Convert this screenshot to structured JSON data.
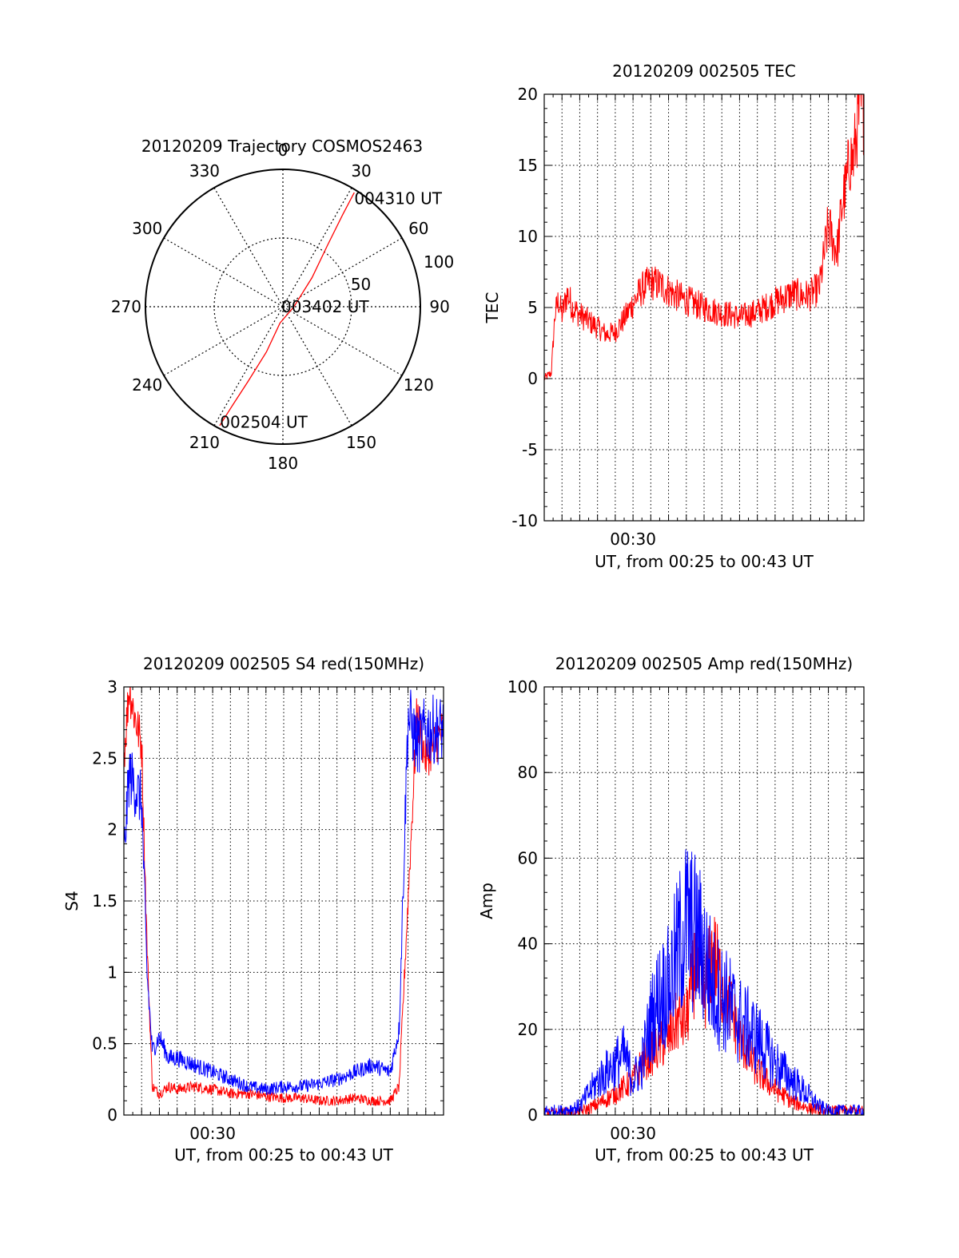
{
  "chart_data": [
    {
      "type": "polar",
      "title": "20120209 Trajectory COSMOS2463",
      "azimuth_labels": [
        "0",
        "30",
        "60",
        "90",
        "120",
        "150",
        "180",
        "210",
        "240",
        "270",
        "300",
        "330"
      ],
      "azimuth_values": [
        0,
        30,
        60,
        90,
        120,
        150,
        180,
        210,
        240,
        270,
        300,
        330
      ],
      "ring_labels": [
        "50",
        "100"
      ],
      "ring_values": [
        50,
        100
      ],
      "r_max": 100,
      "annotations": [
        {
          "text": "004310 UT",
          "az": 34,
          "r": 95
        },
        {
          "text": "003402 UT",
          "az": 0,
          "r": 0
        },
        {
          "text": "002504 UT",
          "az": 208,
          "r": 95
        }
      ],
      "series": [
        {
          "color": "#ff0000",
          "points": [
            [
              32,
              98
            ],
            [
              33,
              80
            ],
            [
              36,
              55
            ],
            [
              45,
              30
            ],
            [
              90,
              8
            ],
            [
              190,
              12
            ],
            [
              200,
              35
            ],
            [
              205,
              60
            ],
            [
              207,
              80
            ],
            [
              208,
              98
            ]
          ]
        }
      ]
    },
    {
      "type": "line",
      "title": "20120209 002505 TEC",
      "ylabel": "TEC",
      "xlabel": "UT, from 00:25 to 00:43 UT",
      "xticklabels": [
        {
          "value": 30,
          "label": "00:30"
        }
      ],
      "yticks": [
        "-10",
        "-5",
        "0",
        "5",
        "10",
        "15",
        "20"
      ],
      "ytick_values": [
        -10,
        -5,
        0,
        5,
        10,
        15,
        20
      ],
      "xlim": [
        25,
        43
      ],
      "ylim": [
        -10,
        20
      ],
      "series": [
        {
          "color": "#ff0000",
          "noise": 0.15,
          "x": [
            25.0,
            25.4,
            25.6,
            25.8,
            26.0,
            26.3,
            26.6,
            27.0,
            28.0,
            28.5,
            29.0,
            29.5,
            30.0,
            30.5,
            31.0,
            31.5,
            32.0,
            32.5,
            33.0,
            34.0,
            35.0,
            35.5,
            36.0,
            37.0,
            38.0,
            39.0,
            39.5,
            40.0,
            40.5,
            41.0,
            41.3,
            41.5,
            41.8,
            42.0,
            42.2,
            42.4,
            42.6,
            42.8,
            43.0
          ],
          "y": [
            0.0,
            0.4,
            4.5,
            5.5,
            4.5,
            6.0,
            5.0,
            4.5,
            3.6,
            3.1,
            3.3,
            4.2,
            5.3,
            6.3,
            6.8,
            6.6,
            6.2,
            5.8,
            5.5,
            5.0,
            4.6,
            4.5,
            4.3,
            4.7,
            5.4,
            6.0,
            5.8,
            5.9,
            6.4,
            10.8,
            9.5,
            9.0,
            12.5,
            13.5,
            15.5,
            15.3,
            17.5,
            19.0,
            18.8
          ]
        }
      ]
    },
    {
      "type": "line",
      "title": "20120209 002505 S4 red(150MHz)",
      "ylabel": "S4",
      "xlabel": "UT, from 00:25 to 00:43 UT",
      "xticklabels": [
        {
          "value": 30,
          "label": "00:30"
        }
      ],
      "yticks": [
        "0",
        "0.5",
        "1",
        "1.5",
        "2",
        "2.5",
        "3"
      ],
      "ytick_values": [
        0,
        0.5,
        1,
        1.5,
        2,
        2.5,
        3
      ],
      "xlim": [
        25,
        43
      ],
      "ylim": [
        0,
        3
      ],
      "series": [
        {
          "color": "#ff0000",
          "noise": 0.05,
          "x": [
            25.0,
            25.3,
            25.6,
            26.0,
            26.3,
            26.6,
            27.0,
            27.5,
            28.0,
            29.0,
            30.0,
            31.0,
            32.0,
            33.0,
            34.0,
            35.0,
            36.0,
            37.0,
            38.0,
            39.0,
            40.0,
            40.5,
            41.0,
            41.5,
            42.0,
            42.5,
            43.0
          ],
          "y": [
            2.5,
            3.0,
            2.8,
            2.6,
            1.2,
            0.2,
            0.15,
            0.2,
            0.18,
            0.2,
            0.18,
            0.15,
            0.15,
            0.13,
            0.12,
            0.12,
            0.1,
            0.1,
            0.12,
            0.1,
            0.1,
            0.2,
            1.5,
            2.8,
            2.5,
            2.6,
            2.7
          ]
        },
        {
          "color": "#0000ff",
          "noise": 0.08,
          "x": [
            25.0,
            25.3,
            25.6,
            26.0,
            26.3,
            26.6,
            27.0,
            27.5,
            28.0,
            29.0,
            30.0,
            31.0,
            32.0,
            33.0,
            34.0,
            35.0,
            36.0,
            37.0,
            38.0,
            39.0,
            40.0,
            40.5,
            41.0,
            41.5,
            42.0,
            42.5,
            43.0
          ],
          "y": [
            1.8,
            2.4,
            2.3,
            2.2,
            1.0,
            0.45,
            0.55,
            0.4,
            0.4,
            0.35,
            0.3,
            0.25,
            0.2,
            0.18,
            0.2,
            0.2,
            0.22,
            0.25,
            0.3,
            0.35,
            0.3,
            0.6,
            2.8,
            2.6,
            2.7,
            2.7,
            2.7
          ]
        }
      ]
    },
    {
      "type": "line",
      "title": "20120209 002505 Amp red(150MHz)",
      "ylabel": "Amp",
      "xlabel": "UT, from 00:25 to 00:43 UT",
      "xticklabels": [
        {
          "value": 30,
          "label": "00:30"
        }
      ],
      "yticks": [
        "0",
        "20",
        "40",
        "60",
        "80",
        "100"
      ],
      "ytick_values": [
        0,
        20,
        40,
        60,
        80,
        100
      ],
      "xlim": [
        25,
        43
      ],
      "ylim": [
        0,
        100
      ],
      "series": [
        {
          "color": "#ff0000",
          "noise": 0.3,
          "x": [
            25.0,
            26.0,
            27.0,
            27.5,
            28.0,
            29.0,
            30.0,
            30.5,
            31.0,
            32.0,
            32.5,
            33.0,
            33.5,
            34.0,
            34.5,
            35.0,
            35.5,
            36.0,
            36.5,
            37.0,
            37.5,
            38.0,
            39.0,
            40.0,
            41.0,
            43.0
          ],
          "y": [
            0.5,
            0.5,
            0.8,
            1.5,
            2.5,
            5.0,
            8.0,
            12.0,
            14.0,
            18.0,
            22.0,
            22.0,
            35.0,
            28.0,
            38.0,
            30.0,
            25.0,
            18.0,
            14.0,
            10.0,
            8.0,
            6.0,
            3.0,
            1.5,
            1.0,
            1.0
          ]
        },
        {
          "color": "#0000ff",
          "noise": 0.45,
          "x": [
            25.0,
            26.0,
            27.0,
            27.5,
            28.0,
            29.0,
            29.5,
            30.0,
            30.5,
            31.0,
            31.5,
            32.0,
            32.5,
            33.0,
            33.5,
            34.0,
            34.5,
            35.0,
            35.5,
            36.0,
            37.0,
            38.0,
            39.0,
            40.0,
            40.5,
            41.0,
            43.0
          ],
          "y": [
            1.0,
            1.0,
            2.0,
            5.0,
            8.0,
            12.0,
            14.0,
            8.0,
            12.0,
            22.0,
            28.0,
            30.0,
            38.0,
            45.0,
            42.0,
            38.0,
            30.0,
            28.0,
            25.0,
            22.0,
            18.0,
            12.0,
            8.0,
            4.0,
            2.0,
            1.0,
            1.0
          ]
        }
      ]
    }
  ]
}
